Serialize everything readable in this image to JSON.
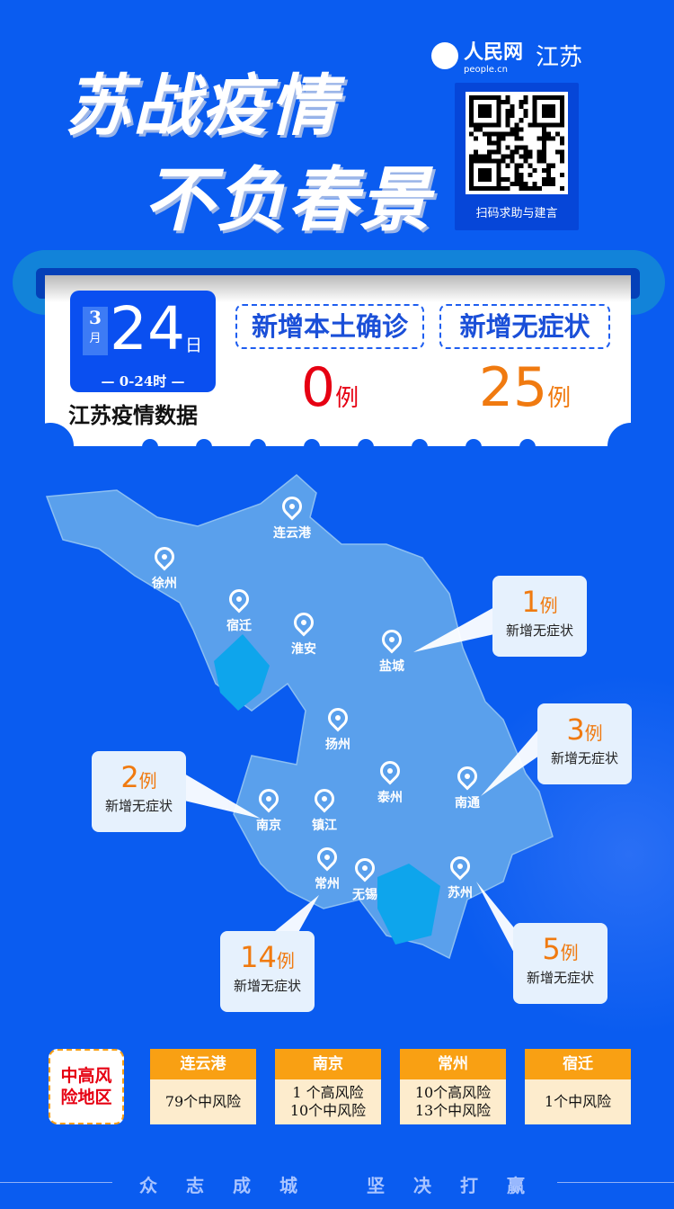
{
  "header": {
    "title_line1": "苏战疫情",
    "title_line2": "不负春景",
    "logo_cn": "人民网",
    "logo_en": "people.cn",
    "logo_region": "江苏",
    "qr_caption": "扫码求助与建言"
  },
  "summary": {
    "month": "3",
    "month_unit": "月",
    "day": "24",
    "day_unit": "日",
    "period": "0-24时",
    "region_label": "江苏疫情数据",
    "confirmed_label": "新增本土确诊",
    "confirmed_value": "0",
    "asymptomatic_label": "新增无症状",
    "asymptomatic_value": "25",
    "unit": "例"
  },
  "colors": {
    "background": "#0a5cf0",
    "confirmed": "#e60012",
    "asymptomatic": "#f07a10",
    "risk_header": "#f9a013"
  },
  "map": {
    "cities": [
      "连云港",
      "徐州",
      "宿迁",
      "淮安",
      "盐城",
      "扬州",
      "泰州",
      "南通",
      "南京",
      "镇江",
      "常州",
      "无锡",
      "苏州"
    ],
    "callouts": [
      {
        "city": "盐城",
        "value": "1",
        "unit": "例",
        "label": "新增无症状"
      },
      {
        "city": "南通",
        "value": "3",
        "unit": "例",
        "label": "新增无症状"
      },
      {
        "city": "南京",
        "value": "2",
        "unit": "例",
        "label": "新增无症状"
      },
      {
        "city": "常州",
        "value": "14",
        "unit": "例",
        "label": "新增无症状"
      },
      {
        "city": "苏州",
        "value": "5",
        "unit": "例",
        "label": "新增无症状"
      }
    ]
  },
  "risk": {
    "label": "中高风险地区",
    "areas": [
      {
        "city": "连云港",
        "lines": [
          "79个中风险"
        ]
      },
      {
        "city": "南京",
        "lines": [
          "1 个高风险",
          "10个中风险"
        ]
      },
      {
        "city": "常州",
        "lines": [
          "10个高风险",
          "13个中风险"
        ]
      },
      {
        "city": "宿迁",
        "lines": [
          "1个中风险"
        ]
      }
    ]
  },
  "footer": {
    "slogan_left": "众志成城",
    "slogan_right": "坚决打赢"
  }
}
